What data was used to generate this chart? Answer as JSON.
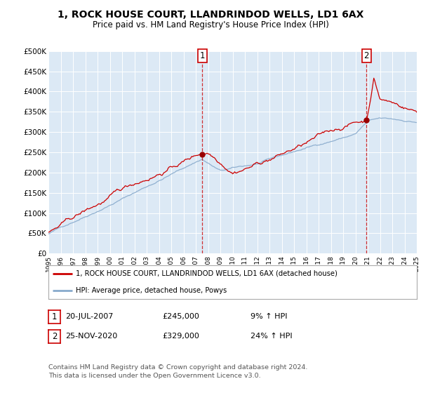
{
  "title": "1, ROCK HOUSE COURT, LLANDRINDOD WELLS, LD1 6AX",
  "subtitle": "Price paid vs. HM Land Registry's House Price Index (HPI)",
  "background_color": "#ffffff",
  "plot_bg_color": "#dce9f5",
  "grid_color": "#c8d8e8",
  "sale1_price": 245000,
  "sale1_label": "1",
  "sale1_date_str": "20-JUL-2007",
  "sale1_year": 2007.54,
  "sale2_price": 329000,
  "sale2_label": "2",
  "sale2_date_str": "25-NOV-2020",
  "sale2_year": 2020.9,
  "legend_line1": "1, ROCK HOUSE COURT, LLANDRINDOD WELLS, LD1 6AX (detached house)",
  "legend_line2": "HPI: Average price, detached house, Powys",
  "footer1": "Contains HM Land Registry data © Crown copyright and database right 2024.",
  "footer2": "This data is licensed under the Open Government Licence v3.0.",
  "table_row1": [
    "1",
    "20-JUL-2007",
    "£245,000",
    "9% ↑ HPI"
  ],
  "table_row2": [
    "2",
    "25-NOV-2020",
    "£329,000",
    "24% ↑ HPI"
  ],
  "red_color": "#cc0000",
  "blue_color": "#88aacc",
  "ylim": [
    0,
    500000
  ],
  "yticks": [
    0,
    50000,
    100000,
    150000,
    200000,
    250000,
    300000,
    350000,
    400000,
    450000,
    500000
  ],
  "ytick_labels": [
    "£0",
    "£50K",
    "£100K",
    "£150K",
    "£200K",
    "£250K",
    "£300K",
    "£350K",
    "£400K",
    "£450K",
    "£500K"
  ],
  "xstart": 1995,
  "xend": 2025,
  "noise_seed": 42,
  "hpi_noise_scale": 600,
  "red_noise_scale": 1500
}
